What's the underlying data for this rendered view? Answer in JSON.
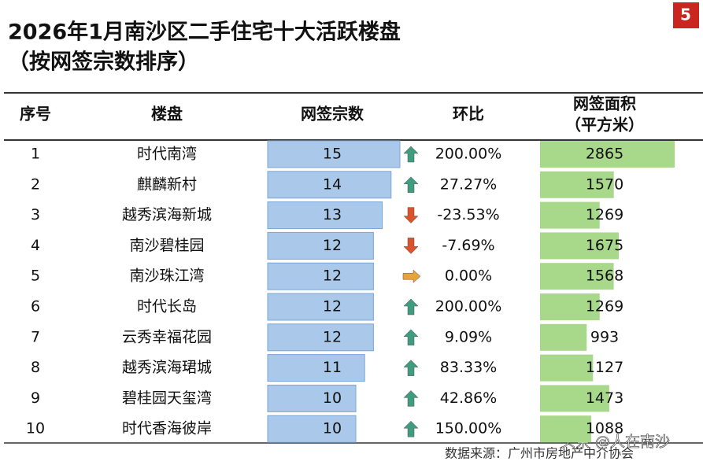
{
  "title": [
    "2026年1月南沙区二手住宅十大活跃楼盘",
    "（按网签宗数排序）"
  ],
  "badge": "5",
  "table": {
    "headers": [
      "序号",
      "楼盘",
      "网签宗数",
      "环比",
      [
        "网签面积",
        "（平方米）"
      ]
    ],
    "rows": [
      [
        1,
        "时代南湾",
        15,
        "200.00%",
        2865
      ],
      [
        2,
        "麒麟新村",
        14,
        "27.27%",
        1570
      ],
      [
        3,
        "越秀滨海新城",
        13,
        "-23.53%",
        1269
      ],
      [
        4,
        "南沙碧桂园",
        12,
        "-7.69%",
        1675
      ],
      [
        5,
        "南沙珠江湾",
        12,
        "0.00%",
        1568
      ],
      [
        6,
        "时代长岛",
        12,
        "200.00%",
        1269
      ],
      [
        7,
        "云秀幸福花园",
        12,
        "9.09%",
        993
      ],
      [
        8,
        "越秀滨海珺城",
        11,
        "83.33%",
        1127
      ],
      [
        9,
        "碧桂园天玺湾",
        10,
        "42.86%",
        1473
      ],
      [
        10,
        "时代香海彼岸",
        10,
        "150.00%",
        1088
      ]
    ],
    "trend": [
      "up",
      "up",
      "down",
      "down",
      "flat",
      "up",
      "up",
      "up",
      "up",
      "up"
    ],
    "count_color": "#a9c8ea",
    "area_color": "#a8d88a"
  },
  "source": "数据来源：广州市房地产中介协会",
  "watermark": "头条 @人在南沙"
}
